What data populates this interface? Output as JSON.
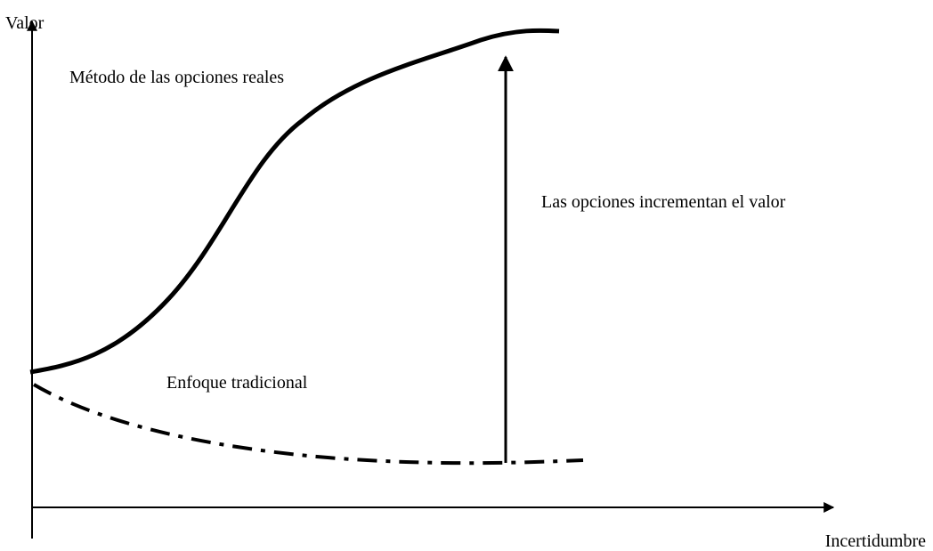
{
  "axes": {
    "y_label": "Valor",
    "x_label": "Incertidumbre"
  },
  "curves": {
    "real_options": "Método de las opciones reales",
    "traditional": "Enfoque tradicional"
  },
  "annotation": "Las opciones incrementan el valor"
}
